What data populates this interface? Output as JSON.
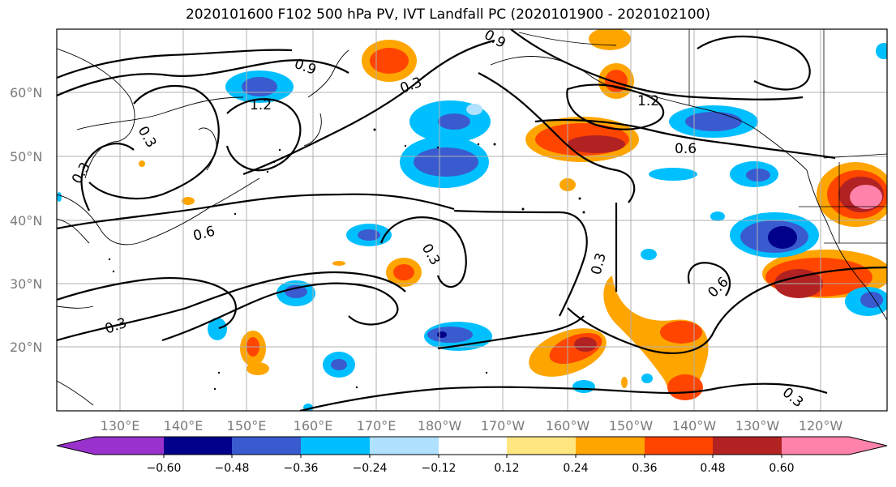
{
  "title": "2020101600 F102 500 hPa PV, IVT Landfall PC (2020101900 - 2020102100)",
  "longitude_labels": [
    "130°E",
    "140°E",
    "150°E",
    "160°E",
    "170°E",
    "180°W",
    "170°W",
    "160°W",
    "150°W",
    "140°W",
    "130°W",
    "120°W"
  ],
  "latitude_labels": [
    "60°N",
    "50°N",
    "40°N",
    "30°N",
    "20°N"
  ],
  "contour_labels": [
    "0.9",
    "0.3",
    "1.2",
    "0.3",
    "0.3",
    "0.6",
    "0.9",
    "1.2",
    "0.6",
    "0.3",
    "0.3",
    "0.6",
    "0.3",
    "0.3"
  ],
  "colorbar": {
    "tick_labels": [
      "−0.60",
      "−0.48",
      "−0.36",
      "−0.24",
      "−0.12",
      "0.12",
      "0.24",
      "0.36",
      "0.48",
      "0.60"
    ],
    "colors": [
      "#9932cc",
      "#00008b",
      "#3a5bcf",
      "#00bfff",
      "#b0e2ff",
      "#ffffff",
      "#ffe680",
      "#ffa500",
      "#ff4500",
      "#b22222",
      "#ff82ab"
    ]
  },
  "colors": {
    "blue_dark": "#00008b",
    "blue_mid": "#3a5bcf",
    "blue_light": "#00bfff",
    "blue_pale": "#b0e2ff",
    "yellow": "#ffe680",
    "orange": "#ffa500",
    "red_orange": "#ff4500",
    "dark_red": "#b22222",
    "pink": "#ff82ab"
  }
}
